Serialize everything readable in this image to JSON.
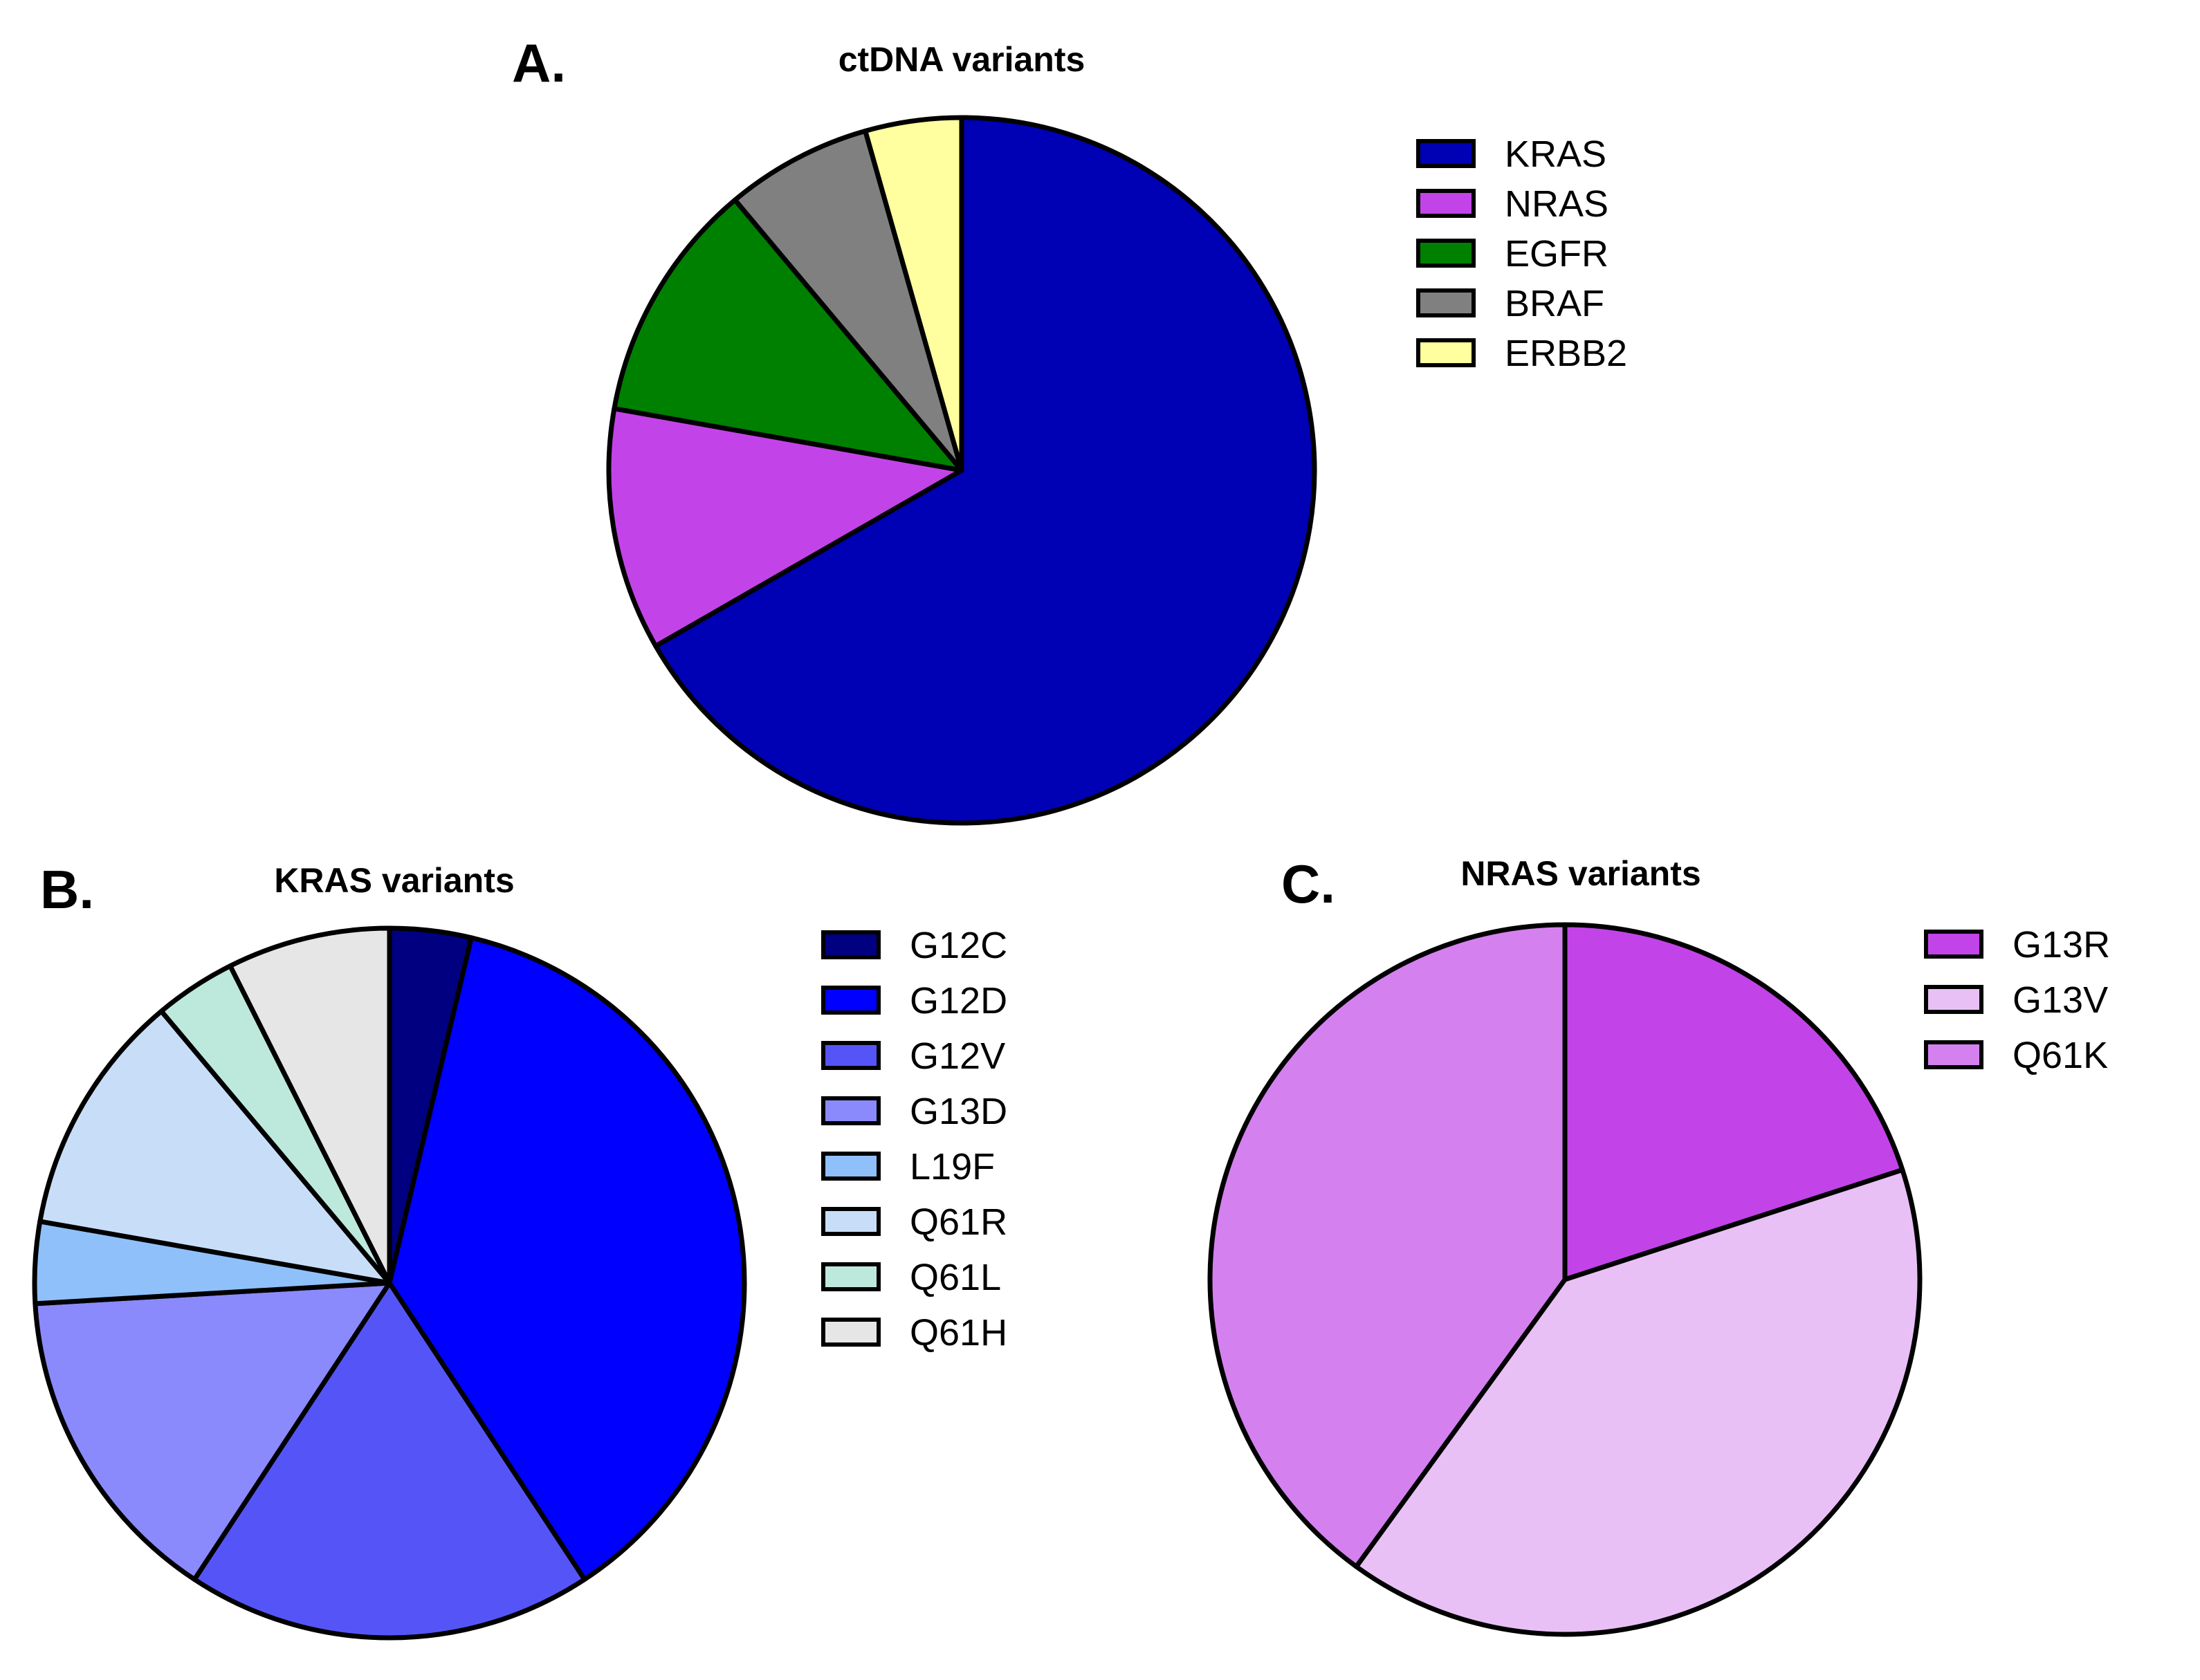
{
  "chart_data": [
    {
      "type": "pie",
      "panel_label": "A.",
      "title": "ctDNA variants",
      "categories": [
        "KRAS",
        "NRAS",
        "EGFR",
        "BRAF",
        "ERBB2"
      ],
      "values": [
        66.7,
        11.1,
        11.1,
        6.7,
        4.4
      ],
      "colors": [
        "#0000b4",
        "#c244e8",
        "#008000",
        "#808080",
        "#ffffa0"
      ],
      "start_angle_deg": 0,
      "direction": "clockwise",
      "legend_position": "right"
    },
    {
      "type": "pie",
      "panel_label": "B.",
      "title": "KRAS variants",
      "categories": [
        "G12C",
        "G12D",
        "G12V",
        "G13D",
        "L19F",
        "Q61R",
        "Q61L",
        "Q61H"
      ],
      "values": [
        3.7,
        37.0,
        18.5,
        14.8,
        3.7,
        11.1,
        3.7,
        7.4
      ],
      "colors": [
        "#000080",
        "#0000ff",
        "#5555f7",
        "#8a8afc",
        "#8fc0fa",
        "#c8def8",
        "#bde9dd",
        "#e6e6e6"
      ],
      "start_angle_deg": 0,
      "direction": "clockwise",
      "legend_position": "right"
    },
    {
      "type": "pie",
      "panel_label": "C.",
      "title": "NRAS variants",
      "categories": [
        "G13R",
        "G13V",
        "Q61K"
      ],
      "values": [
        20,
        40,
        40
      ],
      "colors": [
        "#c244e8",
        "#e8c0f6",
        "#d481ef"
      ],
      "start_angle_deg": 0,
      "direction": "clockwise",
      "legend_position": "right"
    }
  ]
}
